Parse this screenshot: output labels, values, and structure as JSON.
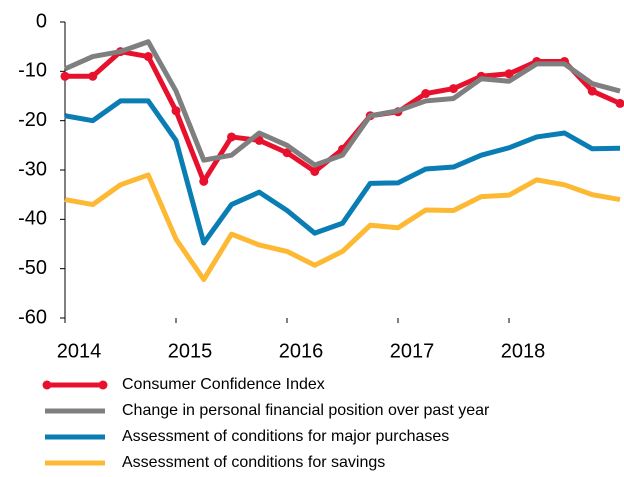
{
  "chart_data": {
    "type": "line",
    "x": [
      2014,
      2014.25,
      2014.5,
      2014.75,
      2015,
      2015.25,
      2015.5,
      2015.75,
      2016,
      2016.25,
      2016.5,
      2016.75,
      2017,
      2017.25,
      2017.5,
      2017.75,
      2018,
      2018.25,
      2018.5,
      2018.75,
      2019
    ],
    "series": [
      {
        "name": "Consumer Confidence Index",
        "color": "#e8112d",
        "markers": true,
        "values": [
          -11,
          -11,
          -6,
          -7,
          -18,
          -32.3,
          -23.3,
          -24,
          -26.5,
          -30.3,
          -25.8,
          -19,
          -18.2,
          -14.5,
          -13.5,
          -11,
          -10.5,
          -8,
          -8,
          -14,
          -16.5
        ]
      },
      {
        "name": "Change in personal financial position over past year",
        "color": "#7f7f7f",
        "markers": false,
        "values": [
          -9.5,
          -7,
          -6,
          -4,
          -14,
          -28,
          -27,
          -22.5,
          -25,
          -29,
          -27,
          -19,
          -18,
          -16,
          -15.5,
          -11.5,
          -12,
          -8.5,
          -8.5,
          -12.5,
          -14
        ]
      },
      {
        "name": "Assessment of conditions for major purchases",
        "color": "#0a7db4",
        "markers": false,
        "values": [
          -19,
          -20,
          -16,
          -16,
          -24,
          -44.8,
          -37,
          -34.5,
          -38.2,
          -42.8,
          -40.8,
          -32.7,
          -32.6,
          -29.8,
          -29.4,
          -27,
          -25.5,
          -23.3,
          -22.5,
          -25.7,
          -25.6
        ]
      },
      {
        "name": "Assessment of conditions for savings",
        "color": "#fdb933",
        "markers": false,
        "values": [
          -36,
          -37,
          -33,
          -31,
          -44,
          -52.2,
          -43,
          -45.2,
          -46.5,
          -49.3,
          -46.5,
          -41.2,
          -41.7,
          -38.1,
          -38.2,
          -35.4,
          -35.1,
          -32,
          -33,
          -35,
          -36
        ]
      }
    ],
    "xlim": [
      2014,
      2019
    ],
    "xticks": [
      2014,
      2015,
      2016,
      2017,
      2018
    ],
    "ylim": [
      -60,
      0
    ],
    "yticks": [
      0,
      -10,
      -20,
      -30,
      -40,
      -50,
      -60
    ]
  }
}
